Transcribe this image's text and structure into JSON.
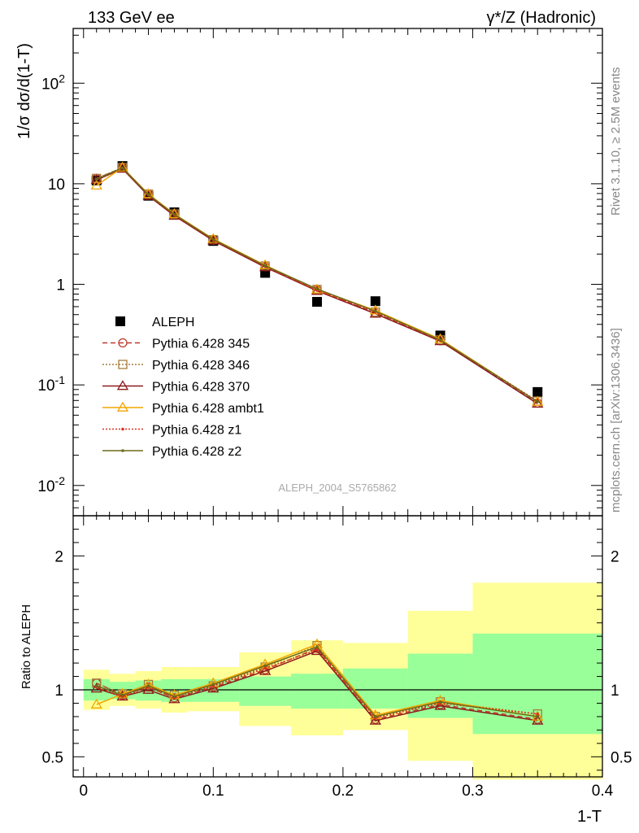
{
  "header": {
    "left": "133 GeV ee",
    "right": "γ*/Z (Hadronic)"
  },
  "side": {
    "rivet": "Rivet 3.1.10, ≥ 2.5M events",
    "mcplots": "mcplots.cern.ch [arXiv:1306.3436]"
  },
  "watermark": "ALEPH_2004_S5765862",
  "chart_data": [
    {
      "type": "scatter",
      "panel": "main",
      "ylabel": "1/σ dσ/d(1-T)",
      "yscale": "log",
      "ylim": [
        0.005,
        350
      ],
      "xlim": [
        -0.008,
        0.4
      ],
      "ytick_labels": [
        "10^-2",
        "10^-1",
        "1",
        "10",
        "10^2"
      ],
      "legend_position": "left-middle",
      "x": [
        0.01,
        0.03,
        0.05,
        0.07,
        0.1,
        0.14,
        0.18,
        0.225,
        0.275,
        0.35
      ],
      "series": [
        {
          "name": "ALEPH",
          "style": "data",
          "color": "#000000",
          "values": [
            10.8,
            15.0,
            7.6,
            5.2,
            2.7,
            1.3,
            0.67,
            0.68,
            0.31,
            0.085
          ]
        },
        {
          "name": "Pythia 6.428 345",
          "style": "dashed-circle",
          "color": "#c0392b",
          "values": [
            11.3,
            14.4,
            7.8,
            4.9,
            2.75,
            1.5,
            0.88,
            0.52,
            0.275,
            0.066
          ]
        },
        {
          "name": "Pythia 6.428 346",
          "style": "dotted-square",
          "color": "#a67c3a",
          "values": [
            11.3,
            14.5,
            7.9,
            5.0,
            2.78,
            1.52,
            0.89,
            0.53,
            0.28,
            0.069
          ]
        },
        {
          "name": "Pythia 6.428 370",
          "style": "solid-triangle",
          "color": "#8b1a1a",
          "values": [
            10.9,
            14.1,
            7.6,
            4.8,
            2.72,
            1.48,
            0.86,
            0.51,
            0.272,
            0.065
          ]
        },
        {
          "name": "Pythia 6.428 ambt1",
          "style": "solid-triangle",
          "color": "#f0a500",
          "values": [
            9.6,
            14.5,
            7.9,
            5.0,
            2.83,
            1.55,
            0.89,
            0.55,
            0.285,
            0.068
          ]
        },
        {
          "name": "Pythia 6.428 z1",
          "style": "dotted-dot",
          "color": "#e03020",
          "values": [
            11.0,
            14.3,
            7.75,
            4.9,
            2.77,
            1.51,
            0.87,
            0.53,
            0.277,
            0.069
          ]
        },
        {
          "name": "Pythia 6.428 z2",
          "style": "solid-dot",
          "color": "#6b6b1a",
          "values": [
            11.1,
            14.4,
            7.8,
            4.95,
            2.8,
            1.53,
            0.9,
            0.54,
            0.28,
            0.068
          ]
        }
      ]
    },
    {
      "type": "line",
      "panel": "ratio",
      "ylabel": "Ratio to ALEPH",
      "xlabel": "1-T",
      "ylim": [
        0.35,
        2.3
      ],
      "xlim": [
        -0.008,
        0.4
      ],
      "yticks": [
        0.5,
        1,
        2
      ],
      "ytick_labels": [
        "0.5",
        "1",
        "2"
      ],
      "xticks": [
        0,
        0.1,
        0.2,
        0.3,
        0.4
      ],
      "xtick_labels": [
        "0",
        "0.1",
        "0.2",
        "0.3",
        "0.4"
      ],
      "bins": [
        {
          "x0": 0.0,
          "x1": 0.02,
          "stat_lo": 0.92,
          "stat_hi": 1.08,
          "tot_lo": 0.85,
          "tot_hi": 1.15
        },
        {
          "x0": 0.02,
          "x1": 0.04,
          "stat_lo": 0.93,
          "stat_hi": 1.06,
          "tot_lo": 0.88,
          "tot_hi": 1.12
        },
        {
          "x0": 0.04,
          "x1": 0.06,
          "stat_lo": 0.92,
          "stat_hi": 1.07,
          "tot_lo": 0.86,
          "tot_hi": 1.14
        },
        {
          "x0": 0.06,
          "x1": 0.08,
          "stat_lo": 0.91,
          "stat_hi": 1.08,
          "tot_lo": 0.83,
          "tot_hi": 1.17
        },
        {
          "x0": 0.08,
          "x1": 0.12,
          "stat_lo": 0.91,
          "stat_hi": 1.08,
          "tot_lo": 0.84,
          "tot_hi": 1.17
        },
        {
          "x0": 0.12,
          "x1": 0.16,
          "stat_lo": 0.88,
          "stat_hi": 1.1,
          "tot_lo": 0.73,
          "tot_hi": 1.28
        },
        {
          "x0": 0.16,
          "x1": 0.2,
          "stat_lo": 0.86,
          "stat_hi": 1.12,
          "tot_lo": 0.66,
          "tot_hi": 1.37
        },
        {
          "x0": 0.2,
          "x1": 0.25,
          "stat_lo": 0.86,
          "stat_hi": 1.16,
          "tot_lo": 0.7,
          "tot_hi": 1.35
        },
        {
          "x0": 0.25,
          "x1": 0.3,
          "stat_lo": 0.79,
          "stat_hi": 1.27,
          "tot_lo": 0.47,
          "tot_hi": 1.59
        },
        {
          "x0": 0.3,
          "x1": 0.4,
          "stat_lo": 0.67,
          "stat_hi": 1.42,
          "tot_lo": 0.33,
          "tot_hi": 1.8
        }
      ],
      "x": [
        0.01,
        0.03,
        0.05,
        0.07,
        0.1,
        0.14,
        0.18,
        0.225,
        0.275,
        0.35
      ],
      "series": [
        {
          "name": "Pythia 6.428 345",
          "values": [
            1.05,
            0.96,
            1.02,
            0.94,
            1.02,
            1.15,
            1.31,
            0.78,
            0.89,
            0.78
          ]
        },
        {
          "name": "Pythia 6.428 346",
          "values": [
            1.05,
            0.97,
            1.04,
            0.96,
            1.03,
            1.17,
            1.33,
            0.8,
            0.91,
            0.82
          ]
        },
        {
          "name": "Pythia 6.428 370",
          "values": [
            1.01,
            0.95,
            1.0,
            0.93,
            1.01,
            1.14,
            1.29,
            0.77,
            0.88,
            0.77
          ]
        },
        {
          "name": "Pythia 6.428 ambt1",
          "values": [
            0.89,
            0.97,
            1.04,
            0.96,
            1.05,
            1.19,
            1.34,
            0.81,
            0.92,
            0.8
          ]
        },
        {
          "name": "Pythia 6.428 z1",
          "values": [
            1.02,
            0.95,
            1.02,
            0.94,
            1.03,
            1.16,
            1.3,
            0.79,
            0.9,
            0.82
          ]
        },
        {
          "name": "Pythia 6.428 z2",
          "values": [
            1.03,
            0.96,
            1.03,
            0.95,
            1.04,
            1.18,
            1.32,
            0.8,
            0.91,
            0.8
          ]
        }
      ],
      "colors": {
        "stat_band": "#99ff99",
        "total_band": "#ffff99"
      }
    }
  ]
}
